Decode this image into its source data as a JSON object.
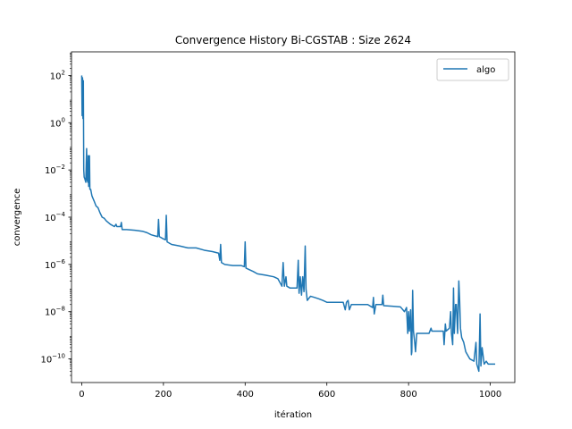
{
  "chart_data": {
    "type": "line",
    "title": "Convergence History Bi-CGSTAB : Size 2624",
    "xlabel": "itération",
    "ylabel": "convergence",
    "xlim": [
      -25,
      1060
    ],
    "ylim": [
      1e-11,
      1000.0
    ],
    "yscale": "log",
    "x_ticks": [
      0,
      200,
      400,
      600,
      800,
      1000
    ],
    "y_ticks": [
      {
        "value": 1e-10,
        "mantissa": "10",
        "exp": "−10"
      },
      {
        "value": 1e-08,
        "mantissa": "10",
        "exp": "−8"
      },
      {
        "value": 1e-06,
        "mantissa": "10",
        "exp": "−6"
      },
      {
        "value": 0.0001,
        "mantissa": "10",
        "exp": "−4"
      },
      {
        "value": 0.01,
        "mantissa": "10",
        "exp": "−2"
      },
      {
        "value": 1,
        "mantissa": "10",
        "exp": "0"
      },
      {
        "value": 100,
        "mantissa": "10",
        "exp": "2"
      }
    ],
    "grid": false,
    "legend_position": "top-right",
    "series": [
      {
        "name": "algo",
        "color": "#1f77b4",
        "points": [
          [
            0,
            100
          ],
          [
            1,
            2
          ],
          [
            2,
            80
          ],
          [
            3,
            1.5
          ],
          [
            4,
            60
          ],
          [
            5,
            0.01
          ],
          [
            6,
            0.005
          ],
          [
            8,
            0.004
          ],
          [
            10,
            0.003
          ],
          [
            12,
            0.08
          ],
          [
            13,
            0.004
          ],
          [
            15,
            0.003
          ],
          [
            16,
            0.04
          ],
          [
            17,
            0.002
          ],
          [
            19,
            0.04
          ],
          [
            20,
            0.0015
          ],
          [
            22,
            0.0015
          ],
          [
            25,
            0.0008
          ],
          [
            30,
            0.0005
          ],
          [
            35,
            0.0003
          ],
          [
            40,
            0.00025
          ],
          [
            45,
            0.00015
          ],
          [
            50,
            0.0001
          ],
          [
            55,
            9e-05
          ],
          [
            60,
            7e-05
          ],
          [
            70,
            5e-05
          ],
          [
            80,
            4e-05
          ],
          [
            84,
            5e-05
          ],
          [
            86,
            4e-05
          ],
          [
            95,
            4e-05
          ],
          [
            97,
            6e-05
          ],
          [
            99,
            3e-05
          ],
          [
            110,
            3e-05
          ],
          [
            130,
            2.8e-05
          ],
          [
            150,
            2.5e-05
          ],
          [
            160,
            2.2e-05
          ],
          [
            170,
            1.8e-05
          ],
          [
            180,
            1.6e-05
          ],
          [
            186,
            1.5e-05
          ],
          [
            188,
            8e-05
          ],
          [
            190,
            1.5e-05
          ],
          [
            200,
            1.2e-05
          ],
          [
            205,
            1.1e-05
          ],
          [
            207,
            0.00012
          ],
          [
            209,
            9e-06
          ],
          [
            220,
            7e-06
          ],
          [
            240,
            6e-06
          ],
          [
            260,
            5e-06
          ],
          [
            280,
            5e-06
          ],
          [
            300,
            4e-06
          ],
          [
            320,
            3.5e-06
          ],
          [
            335,
            3e-06
          ],
          [
            338,
            1.5e-06
          ],
          [
            340,
            7e-06
          ],
          [
            342,
            1.2e-06
          ],
          [
            350,
            1e-06
          ],
          [
            370,
            9e-07
          ],
          [
            390,
            9e-07
          ],
          [
            398,
            8e-07
          ],
          [
            400,
            9e-06
          ],
          [
            402,
            7e-07
          ],
          [
            410,
            6e-07
          ],
          [
            420,
            5e-07
          ],
          [
            430,
            4e-07
          ],
          [
            450,
            3.5e-07
          ],
          [
            470,
            3e-07
          ],
          [
            480,
            2.5e-07
          ],
          [
            490,
            1.2e-07
          ],
          [
            493,
            1.2e-06
          ],
          [
            496,
            1.2e-07
          ],
          [
            500,
            3e-07
          ],
          [
            502,
            1.2e-07
          ],
          [
            510,
            1e-07
          ],
          [
            520,
            1e-07
          ],
          [
            527,
            1e-07
          ],
          [
            530,
            1.5e-06
          ],
          [
            532,
            6e-08
          ],
          [
            535,
            3e-07
          ],
          [
            538,
            5e-08
          ],
          [
            541,
            3e-07
          ],
          [
            544,
            7e-08
          ],
          [
            547,
            6e-06
          ],
          [
            549,
            9e-08
          ],
          [
            552,
            3e-08
          ],
          [
            560,
            4.5e-08
          ],
          [
            570,
            4e-08
          ],
          [
            580,
            3.5e-08
          ],
          [
            590,
            3e-08
          ],
          [
            600,
            2.5e-08
          ],
          [
            620,
            2.5e-08
          ],
          [
            640,
            2.5e-08
          ],
          [
            645,
            1.2e-08
          ],
          [
            648,
            2.5e-08
          ],
          [
            652,
            3e-08
          ],
          [
            655,
            1.2e-08
          ],
          [
            660,
            2e-08
          ],
          [
            680,
            2e-08
          ],
          [
            700,
            2e-08
          ],
          [
            712,
            1.5e-08
          ],
          [
            714,
            4e-08
          ],
          [
            716,
            8e-09
          ],
          [
            720,
            2e-08
          ],
          [
            735,
            2e-08
          ],
          [
            737,
            5e-08
          ],
          [
            739,
            1.8e-08
          ],
          [
            760,
            1.7e-08
          ],
          [
            780,
            1.6e-08
          ],
          [
            790,
            1e-08
          ],
          [
            795,
            1.5e-08
          ],
          [
            798,
            1.2e-09
          ],
          [
            800,
            1e-08
          ],
          [
            802,
            1.5e-09
          ],
          [
            805,
            1.2e-08
          ],
          [
            807,
            1.5e-10
          ],
          [
            808,
            2e-10
          ],
          [
            810,
            8e-08
          ],
          [
            812,
            1.5e-09
          ],
          [
            815,
            5e-10
          ],
          [
            817,
            2e-10
          ],
          [
            820,
            1.2e-09
          ],
          [
            830,
            1.2e-09
          ],
          [
            840,
            1.2e-09
          ],
          [
            850,
            1.2e-09
          ],
          [
            855,
            2e-09
          ],
          [
            857,
            1.5e-09
          ],
          [
            870,
            1.5e-09
          ],
          [
            885,
            1.5e-09
          ],
          [
            887,
            4e-10
          ],
          [
            890,
            3e-09
          ],
          [
            892,
            1.5e-09
          ],
          [
            900,
            2e-09
          ],
          [
            903,
            1e-08
          ],
          [
            905,
            1.2e-09
          ],
          [
            908,
            4e-10
          ],
          [
            910,
            1e-07
          ],
          [
            912,
            1.2e-09
          ],
          [
            915,
            2e-08
          ],
          [
            917,
            2e-08
          ],
          [
            920,
            1.2e-09
          ],
          [
            923,
            2e-07
          ],
          [
            925,
            3e-08
          ],
          [
            927,
            2e-09
          ],
          [
            930,
            8e-10
          ],
          [
            935,
            5e-10
          ],
          [
            940,
            2e-10
          ],
          [
            950,
            1e-10
          ],
          [
            960,
            8e-11
          ],
          [
            965,
            5e-10
          ],
          [
            967,
            6e-11
          ],
          [
            972,
            3e-11
          ],
          [
            975,
            8e-09
          ],
          [
            977,
            5e-11
          ],
          [
            980,
            3e-10
          ],
          [
            985,
            6e-11
          ],
          [
            990,
            8e-11
          ],
          [
            995,
            6e-11
          ],
          [
            1000,
            6e-11
          ],
          [
            1012,
            6e-11
          ]
        ]
      }
    ]
  }
}
